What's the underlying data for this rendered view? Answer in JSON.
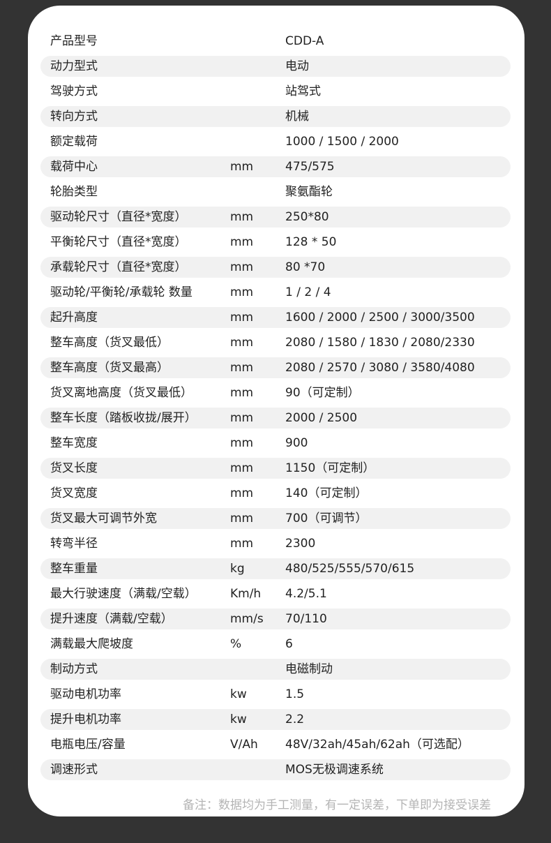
{
  "specs": [
    {
      "label": "产品型号",
      "unit": "",
      "value": "CDD-A"
    },
    {
      "label": "动力型式",
      "unit": "",
      "value": "电动"
    },
    {
      "label": "驾驶方式",
      "unit": "",
      "value": "站驾式"
    },
    {
      "label": "转向方式",
      "unit": "",
      "value": "机械"
    },
    {
      "label": "额定载荷",
      "unit": "",
      "value": "1000 / 1500 / 2000"
    },
    {
      "label": "载荷中心",
      "unit": "mm",
      "value": "475/575"
    },
    {
      "label": "轮胎类型",
      "unit": "",
      "value": "聚氨酯轮"
    },
    {
      "label": "驱动轮尺寸（直径*宽度）",
      "unit": "mm",
      "value": "250*80"
    },
    {
      "label": "平衡轮尺寸（直径*宽度）",
      "unit": "mm",
      "value": "128 * 50"
    },
    {
      "label": "承载轮尺寸（直径*宽度）",
      "unit": "mm",
      "value": "80 *70"
    },
    {
      "label": "驱动轮/平衡轮/承载轮 数量",
      "unit": "mm",
      "value": "1 / 2 / 4"
    },
    {
      "label": "起升高度",
      "unit": "mm",
      "value": "1600 / 2000 / 2500 / 3000/3500"
    },
    {
      "label": "整车高度（货叉最低）",
      "unit": "mm",
      "value": "2080 / 1580 / 1830 / 2080/2330"
    },
    {
      "label": "整车高度（货叉最高）",
      "unit": "mm",
      "value": "2080 / 2570 / 3080 / 3580/4080"
    },
    {
      "label": "货叉离地高度（货叉最低）",
      "unit": "mm",
      "value": "90（可定制）"
    },
    {
      "label": "整车长度（踏板收拢/展开）",
      "unit": "mm",
      "value": "2000 / 2500"
    },
    {
      "label": "整车宽度",
      "unit": "mm",
      "value": "900"
    },
    {
      "label": "货叉长度",
      "unit": "mm",
      "value": "1150（可定制）"
    },
    {
      "label": "货叉宽度",
      "unit": "mm",
      "value": "140（可定制）"
    },
    {
      "label": "货叉最大可调节外宽",
      "unit": "mm",
      "value": "700（可调节）"
    },
    {
      "label": "转弯半径",
      "unit": "mm",
      "value": "2300"
    },
    {
      "label": "整车重量",
      "unit": "kg",
      "value": "480/525/555/570/615"
    },
    {
      "label": "最大行驶速度（满载/空载）",
      "unit": "Km/h",
      "value": "4.2/5.1"
    },
    {
      "label": "提升速度（满载/空载）",
      "unit": "mm/s",
      "value": "70/110"
    },
    {
      "label": "满载最大爬坡度",
      "unit": "%",
      "value": "6"
    },
    {
      "label": "制动方式",
      "unit": "",
      "value": "电磁制动"
    },
    {
      "label": "驱动电机功率",
      "unit": "kw",
      "value": "1.5"
    },
    {
      "label": "提升电机功率",
      "unit": "kw",
      "value": "2.2"
    },
    {
      "label": "电瓶电压/容量",
      "unit": "V/Ah",
      "value": "48V/32ah/45ah/62ah（可选配）"
    },
    {
      "label": "调速形式",
      "unit": "",
      "value": "MOS无极调速系统"
    }
  ],
  "note": "备注：数据均为手工测量，有一定误差，下单即为接受误差",
  "colors": {
    "background": "#333333",
    "card": "#ffffff",
    "stripe": "#f1f1f1",
    "text": "#222222",
    "note": "#b4b4b4"
  }
}
